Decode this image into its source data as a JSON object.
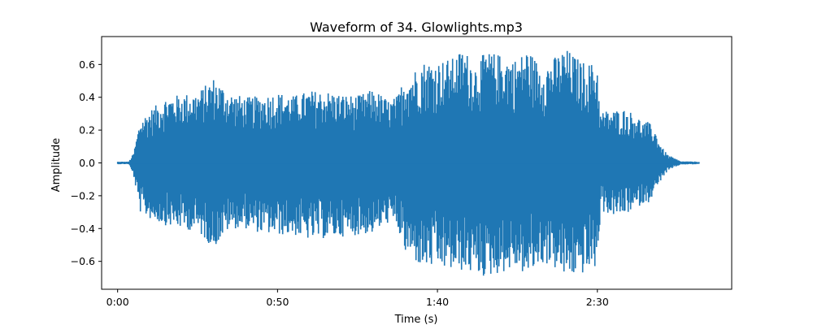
{
  "chart_data": {
    "type": "area",
    "title": "Waveform of 34. Glowlights.mp3",
    "xlabel": "Time (s)",
    "ylabel": "Amplitude",
    "xlim": [
      -5,
      192
    ],
    "ylim": [
      -0.77,
      0.77
    ],
    "x_ticks": [
      {
        "value": 0,
        "label": "0:00"
      },
      {
        "value": 50,
        "label": "0:50"
      },
      {
        "value": 100,
        "label": "1:40"
      },
      {
        "value": 150,
        "label": "2:30"
      }
    ],
    "y_ticks": [
      {
        "value": 0.6,
        "label": "0.6"
      },
      {
        "value": 0.4,
        "label": "0.4"
      },
      {
        "value": 0.2,
        "label": "0.2"
      },
      {
        "value": 0.0,
        "label": "0.0"
      },
      {
        "value": -0.2,
        "label": "−0.2"
      },
      {
        "value": -0.4,
        "label": "−0.4"
      },
      {
        "value": -0.6,
        "label": "−0.6"
      }
    ],
    "grid": false,
    "series": [
      {
        "color": "#1f77b4",
        "envelope": {
          "time": [
            0,
            3.5,
            5,
            7,
            10,
            15,
            20,
            25,
            30,
            35,
            40,
            45,
            50,
            55,
            60,
            65,
            70,
            75,
            80,
            85,
            87.5,
            90,
            92,
            95,
            100,
            105,
            108,
            112,
            115,
            120,
            125,
            128,
            132,
            135,
            140,
            145,
            150,
            151,
            152,
            155,
            158,
            162,
            164,
            166,
            168,
            170,
            172,
            176,
            182
          ],
          "upper": [
            0.008,
            0.008,
            0.06,
            0.26,
            0.32,
            0.4,
            0.42,
            0.43,
            0.52,
            0.43,
            0.4,
            0.41,
            0.43,
            0.41,
            0.44,
            0.44,
            0.42,
            0.41,
            0.45,
            0.38,
            0.41,
            0.55,
            0.55,
            0.62,
            0.62,
            0.64,
            0.7,
            0.6,
            0.68,
            0.66,
            0.63,
            0.7,
            0.6,
            0.62,
            0.7,
            0.62,
            0.6,
            0.3,
            0.32,
            0.32,
            0.33,
            0.3,
            0.25,
            0.25,
            0.2,
            0.1,
            0.05,
            0.01,
            0.008
          ],
          "lower": [
            -0.008,
            -0.008,
            -0.08,
            -0.3,
            -0.34,
            -0.38,
            -0.4,
            -0.42,
            -0.52,
            -0.4,
            -0.4,
            -0.43,
            -0.44,
            -0.44,
            -0.47,
            -0.46,
            -0.45,
            -0.44,
            -0.43,
            -0.36,
            -0.4,
            -0.56,
            -0.58,
            -0.64,
            -0.64,
            -0.66,
            -0.66,
            -0.68,
            -0.7,
            -0.67,
            -0.64,
            -0.7,
            -0.62,
            -0.62,
            -0.7,
            -0.68,
            -0.64,
            -0.3,
            -0.3,
            -0.32,
            -0.32,
            -0.28,
            -0.25,
            -0.24,
            -0.18,
            -0.1,
            -0.05,
            -0.01,
            -0.008
          ]
        }
      }
    ]
  }
}
